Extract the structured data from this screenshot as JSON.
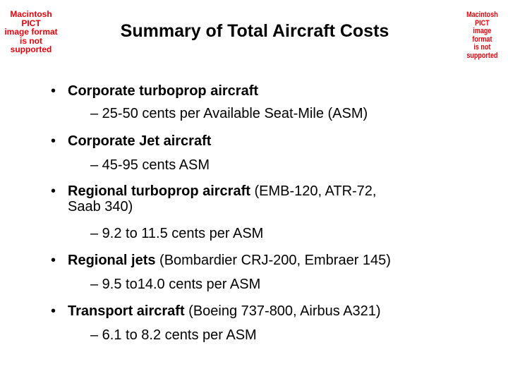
{
  "placeholders": {
    "left": [
      "Macintosh PICT",
      "image format",
      "is not supported"
    ],
    "right": [
      "Macintosh PICT",
      "image format",
      "is not supported"
    ]
  },
  "title": "Summary of Total Aircraft Costs",
  "bullets": [
    {
      "bold": "Corporate turboprop aircraft",
      "normal_line1": "",
      "normal_line2": "",
      "sub": "– 25-50 cents per Available Seat-Mile (ASM)"
    },
    {
      "bold": "Corporate Jet aircraft",
      "normal_line1": "",
      "normal_line2": "",
      "sub": "– 45-95 cents ASM"
    },
    {
      "bold": "Regional turboprop aircraft",
      "normal_line1": " (EMB-120, ATR-72,",
      "normal_line2": "Saab 340)",
      "sub": "– 9.2 to 11.5 cents per ASM"
    },
    {
      "bold": "Regional jets",
      "normal_line1": " (Bombardier CRJ-200, Embraer 145)",
      "normal_line2": "",
      "sub": "–  9.5 to14.0 cents per ASM"
    },
    {
      "bold": "Transport aircraft",
      "normal_line1": " (Boeing 737-800, Airbus A321)",
      "normal_line2": "",
      "sub": "–  6.1 to 8.2 cents per ASM"
    }
  ],
  "bullet_symbol": "•",
  "colors": {
    "placeholder_text": "#e8000b",
    "text": "#000000",
    "background": "#ffffff"
  }
}
